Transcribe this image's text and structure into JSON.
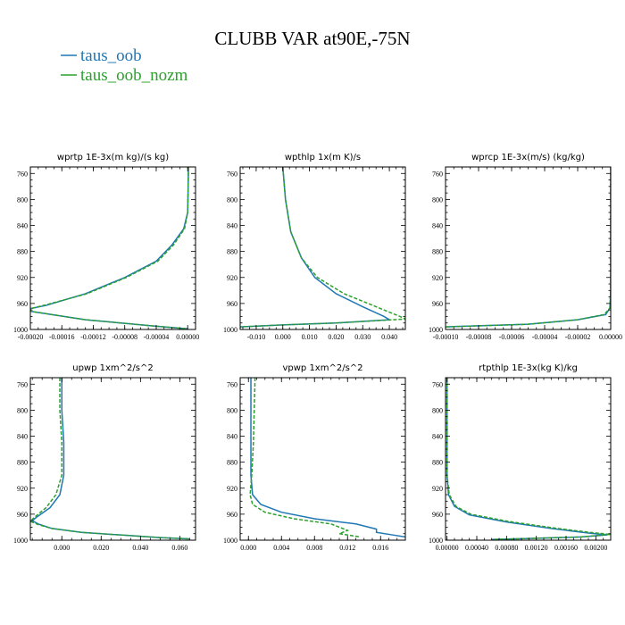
{
  "figure": {
    "title": "CLUBB VAR at90E,-75N",
    "colors": {
      "taus_oob": "#1f77b4",
      "taus_oob_nozm": "#2ca02c"
    }
  },
  "legend": [
    {
      "name": "taus_oob",
      "color": "#1f77b4",
      "style": "solid"
    },
    {
      "name": "taus_oob_nozm",
      "color": "#2ca02c",
      "style": "dashed"
    }
  ],
  "chart_data": [
    {
      "type": "line",
      "title": "wprtp  1E-3x(m kg)/(s kg)",
      "xlim": [
        -0.0002,
        1e-05
      ],
      "ylim": [
        1000,
        750
      ],
      "xticks": [
        -0.0002,
        -0.00016,
        -0.00012,
        -8e-05,
        -4e-05,
        0.0
      ],
      "xtick_labels": [
        "-0.00020",
        "-0.00016",
        "-0.00012",
        "-0.00008",
        "-0.00004",
        "0.00000"
      ],
      "yticks": [
        760,
        800,
        840,
        880,
        920,
        960,
        1000
      ],
      "series": [
        {
          "name": "taus_oob",
          "points": [
            [
              1e-06,
              750
            ],
            [
              5e-07,
              790
            ],
            [
              0.0,
              820
            ],
            [
              -5e-06,
              845
            ],
            [
              -2e-05,
              870
            ],
            [
              -4e-05,
              895
            ],
            [
              -8e-05,
              920
            ],
            [
              -0.00013,
              945
            ],
            [
              -0.00018,
              963
            ],
            [
              -0.0002,
              968
            ],
            [
              -0.0002,
              972
            ],
            [
              -0.00013,
              985
            ],
            [
              -4e-05,
              995
            ],
            [
              0.0,
              999
            ]
          ]
        },
        {
          "name": "taus_oob_nozm",
          "points": [
            [
              1e-06,
              750
            ],
            [
              5e-07,
              790
            ],
            [
              0.0,
              820
            ],
            [
              -4e-06,
              845
            ],
            [
              -1.8e-05,
              870
            ],
            [
              -3.8e-05,
              895
            ],
            [
              -7.8e-05,
              920
            ],
            [
              -0.000128,
              945
            ],
            [
              -0.00018,
              962
            ],
            [
              -0.0002,
              968
            ],
            [
              -0.0002,
              972
            ],
            [
              -0.00013,
              985
            ],
            [
              -4e-05,
              995
            ],
            [
              0.0,
              999
            ]
          ]
        }
      ]
    },
    {
      "type": "line",
      "title": "wpthlp  1x(m K)/s",
      "xlim": [
        -0.016,
        0.046
      ],
      "ylim": [
        1000,
        750
      ],
      "xticks": [
        -0.01,
        0.0,
        0.01,
        0.02,
        0.03,
        0.04
      ],
      "xtick_labels": [
        "-0.010",
        "0.000",
        "0.010",
        "0.020",
        "0.030",
        "0.040"
      ],
      "yticks": [
        760,
        800,
        840,
        880,
        920,
        960,
        1000
      ],
      "series": [
        {
          "name": "taus_oob",
          "points": [
            [
              0.0,
              750
            ],
            [
              0.001,
              800
            ],
            [
              0.003,
              850
            ],
            [
              0.007,
              890
            ],
            [
              0.012,
              920
            ],
            [
              0.02,
              945
            ],
            [
              0.03,
              965
            ],
            [
              0.038,
              980
            ],
            [
              0.04,
              985
            ],
            [
              0.02,
              990
            ],
            [
              0.0,
              993
            ],
            [
              -0.016,
              996
            ]
          ]
        },
        {
          "name": "taus_oob_nozm",
          "points": [
            [
              0.0,
              750
            ],
            [
              0.001,
              800
            ],
            [
              0.003,
              850
            ],
            [
              0.007,
              890
            ],
            [
              0.013,
              920
            ],
            [
              0.023,
              945
            ],
            [
              0.035,
              965
            ],
            [
              0.044,
              980
            ],
            [
              0.046,
              984
            ],
            [
              0.02,
              990
            ],
            [
              0.0,
              993
            ],
            [
              -0.016,
              996
            ]
          ]
        }
      ]
    },
    {
      "type": "line",
      "title": "wprcp  1E-3x(m/s) (kg/kg)",
      "xlim": [
        -0.0001,
        0.0
      ],
      "ylim": [
        1000,
        750
      ],
      "xticks": [
        -0.0001,
        -8e-05,
        -6e-05,
        -4e-05,
        -2e-05,
        0.0
      ],
      "xtick_labels": [
        "-0.00010",
        "-0.00008",
        "-0.00006",
        "-0.00004",
        "-0.00002",
        "0.00000"
      ],
      "yticks": [
        760,
        800,
        840,
        880,
        920,
        960,
        1000
      ],
      "series": [
        {
          "name": "taus_oob",
          "points": [
            [
              0.0,
              750
            ],
            [
              0.0,
              940
            ],
            [
              -5e-07,
              967
            ],
            [
              -3e-06,
              977
            ],
            [
              -2e-05,
              985
            ],
            [
              -5e-05,
              992
            ],
            [
              -0.0001,
              996
            ]
          ]
        },
        {
          "name": "taus_oob_nozm",
          "points": [
            [
              0.0,
              750
            ],
            [
              0.0,
              940
            ],
            [
              -5e-07,
              967
            ],
            [
              -4e-06,
              977
            ],
            [
              -2e-05,
              985
            ],
            [
              -5e-05,
              992
            ],
            [
              -0.0001,
              996
            ]
          ]
        }
      ]
    },
    {
      "type": "line",
      "title": "upwp  1xm^2/s^2",
      "xlim": [
        -0.016,
        0.068
      ],
      "ylim": [
        1000,
        750
      ],
      "xticks": [
        0.0,
        0.02,
        0.04,
        0.06
      ],
      "xtick_labels": [
        "0.000",
        "0.020",
        "0.040",
        "0.060"
      ],
      "yticks": [
        760,
        800,
        840,
        880,
        920,
        960,
        1000
      ],
      "series": [
        {
          "name": "taus_oob",
          "points": [
            [
              0.0,
              750
            ],
            [
              0.0,
              800
            ],
            [
              0.001,
              850
            ],
            [
              0.001,
              900
            ],
            [
              -0.001,
              930
            ],
            [
              -0.006,
              950
            ],
            [
              -0.013,
              965
            ],
            [
              -0.015,
              970
            ],
            [
              -0.012,
              975
            ],
            [
              -0.005,
              982
            ],
            [
              0.01,
              988
            ],
            [
              0.03,
              992
            ],
            [
              0.05,
              996
            ],
            [
              0.065,
              998
            ]
          ]
        },
        {
          "name": "taus_oob_nozm",
          "points": [
            [
              -0.001,
              750
            ],
            [
              -0.001,
              800
            ],
            [
              0.0,
              850
            ],
            [
              0.0,
              900
            ],
            [
              -0.003,
              930
            ],
            [
              -0.008,
              950
            ],
            [
              -0.014,
              965
            ],
            [
              -0.016,
              971
            ],
            [
              -0.012,
              976
            ],
            [
              -0.005,
              982
            ],
            [
              0.01,
              988
            ],
            [
              0.03,
              992
            ],
            [
              0.05,
              996
            ],
            [
              0.065,
              998
            ]
          ]
        }
      ]
    },
    {
      "type": "line",
      "title": "vpwp  1xm^2/s^2",
      "xlim": [
        -0.001,
        0.019
      ],
      "ylim": [
        1000,
        750
      ],
      "xticks": [
        0.0,
        0.004,
        0.008,
        0.012,
        0.016
      ],
      "xtick_labels": [
        "0.000",
        "0.004",
        "0.008",
        "0.012",
        "0.016"
      ],
      "yticks": [
        760,
        800,
        840,
        880,
        920,
        960,
        1000
      ],
      "series": [
        {
          "name": "taus_oob",
          "points": [
            [
              0.0003,
              750
            ],
            [
              0.0003,
              850
            ],
            [
              0.0003,
              900
            ],
            [
              0.0005,
              930
            ],
            [
              0.0015,
              945
            ],
            [
              0.004,
              957
            ],
            [
              0.008,
              967
            ],
            [
              0.013,
              975
            ],
            [
              0.0155,
              983
            ],
            [
              0.0155,
              988
            ],
            [
              0.0175,
              992
            ],
            [
              0.019,
              995
            ]
          ]
        },
        {
          "name": "taus_oob_nozm",
          "points": [
            [
              0.0008,
              750
            ],
            [
              0.0006,
              850
            ],
            [
              0.0004,
              900
            ],
            [
              0.0002,
              930
            ],
            [
              0.0005,
              945
            ],
            [
              0.002,
              957
            ],
            [
              0.0055,
              967
            ],
            [
              0.01,
              975
            ],
            [
              0.012,
              985
            ],
            [
              0.011,
              990
            ],
            [
              0.0125,
              993
            ],
            [
              0.0135,
              995
            ]
          ]
        }
      ]
    },
    {
      "type": "line",
      "title": "rtpthlp  1E-3x(kg K)/kg",
      "xlim": [
        -2e-05,
        0.0022
      ],
      "ylim": [
        1000,
        750
      ],
      "xticks": [
        0.0,
        0.0004,
        0.0008,
        0.0012,
        0.0016,
        0.002
      ],
      "xtick_labels": [
        "0.00000",
        "0.00040",
        "0.00080",
        "0.00120",
        "0.00160",
        "0.00200"
      ],
      "yticks": [
        760,
        800,
        840,
        880,
        920,
        960,
        1000
      ],
      "series": [
        {
          "name": "taus_oob",
          "points": [
            [
              0.0,
              750
            ],
            [
              0.0,
              900
            ],
            [
              2e-05,
              930
            ],
            [
              0.0001,
              948
            ],
            [
              0.0003,
              961
            ],
            [
              0.0008,
              972
            ],
            [
              0.0014,
              982
            ],
            [
              0.0019,
              989
            ],
            [
              0.00215,
              992
            ],
            [
              0.0018,
              995
            ],
            [
              0.0012,
              997
            ],
            [
              0.0006,
              999
            ]
          ]
        },
        {
          "name": "taus_oob_nozm",
          "points": [
            [
              0.0,
              750
            ],
            [
              0.0,
              900
            ],
            [
              3e-05,
              930
            ],
            [
              0.00012,
              948
            ],
            [
              0.00032,
              960
            ],
            [
              0.00082,
              971
            ],
            [
              0.00142,
              981
            ],
            [
              0.00192,
              988
            ],
            [
              0.0022,
              991
            ],
            [
              0.0018,
              995
            ],
            [
              0.0012,
              997
            ],
            [
              0.0006,
              999
            ]
          ]
        }
      ]
    }
  ]
}
